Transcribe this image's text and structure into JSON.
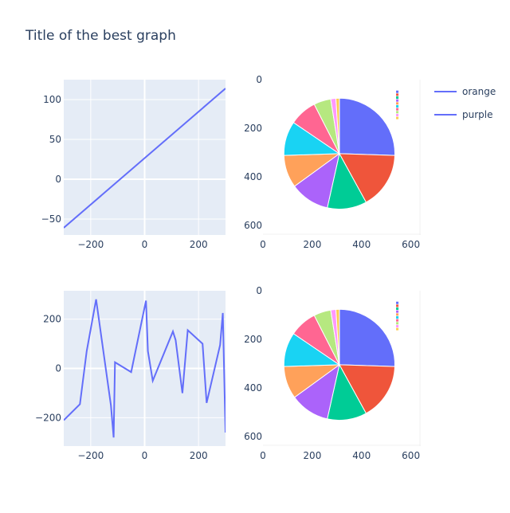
{
  "title": "Title of the best graph",
  "legend": {
    "position": "top-right",
    "items": [
      {
        "name": "orange",
        "color": "#636efa"
      },
      {
        "name": "purple",
        "color": "#636efa"
      }
    ]
  },
  "colors": {
    "plot_bg": "#e5ecf6",
    "grid": "#ffffff",
    "line": "#636efa",
    "text": "#2a3f5f",
    "pie_slices": [
      "#636efa",
      "#ef553b",
      "#00cc96",
      "#ab63fa",
      "#ffa15a",
      "#19d3f3",
      "#ff6692",
      "#b6e880",
      "#ff97ff",
      "#fecb52"
    ]
  },
  "chart_data": [
    {
      "type": "line",
      "subplot": "top-left",
      "series": [
        {
          "name": "orange",
          "x": [
            -300,
            300
          ],
          "y": [
            -61,
            114
          ]
        }
      ],
      "xlim": [
        -300,
        300
      ],
      "ylim": [
        -70,
        125
      ],
      "xticks": [
        -200,
        0,
        200
      ],
      "yticks": [
        -50,
        0,
        50,
        100
      ],
      "grid": true
    },
    {
      "type": "pie",
      "subplot": "top-right",
      "image_axes": true,
      "xticks": [
        0,
        200,
        400,
        600
      ],
      "yticks": [
        0,
        200,
        400,
        600
      ],
      "xlim": [
        0,
        640
      ],
      "ylim": [
        640,
        0
      ],
      "pie": {
        "center": [
          310,
          305
        ],
        "radius": 225
      },
      "slices": [
        {
          "label": "",
          "value": 25.5
        },
        {
          "label": "",
          "value": 16.5
        },
        {
          "label": "",
          "value": 11.5
        },
        {
          "label": "",
          "value": 11.5
        },
        {
          "label": "",
          "value": 9.5
        },
        {
          "label": "",
          "value": 10.0
        },
        {
          "label": "",
          "value": 8.0
        },
        {
          "label": "",
          "value": 5.0
        },
        {
          "label": "",
          "value": 1.5
        },
        {
          "label": "",
          "value": 1.0
        }
      ]
    },
    {
      "type": "line",
      "subplot": "bottom-left",
      "series": [
        {
          "name": "purple",
          "x": [
            -300,
            -240,
            -215,
            -180,
            -125,
            -115,
            -110,
            -50,
            5,
            12,
            30,
            105,
            115,
            140,
            160,
            215,
            230,
            280,
            290,
            300
          ],
          "y": [
            -210,
            -145,
            70,
            280,
            -150,
            -280,
            25,
            -15,
            275,
            70,
            -50,
            150,
            115,
            -100,
            155,
            100,
            -140,
            95,
            225,
            -260
          ]
        }
      ],
      "xlim": [
        -300,
        300
      ],
      "ylim": [
        -315,
        315
      ],
      "xticks": [
        -200,
        0,
        200
      ],
      "yticks": [
        -200,
        0,
        200
      ],
      "grid": true
    },
    {
      "type": "pie",
      "subplot": "bottom-right",
      "image_axes": true,
      "xticks": [
        0,
        200,
        400,
        600
      ],
      "yticks": [
        0,
        200,
        400,
        600
      ],
      "xlim": [
        0,
        640
      ],
      "ylim": [
        640,
        0
      ],
      "pie": {
        "center": [
          310,
          305
        ],
        "radius": 225
      },
      "slices": [
        {
          "label": "",
          "value": 25.5
        },
        {
          "label": "",
          "value": 16.5
        },
        {
          "label": "",
          "value": 11.5
        },
        {
          "label": "",
          "value": 11.5
        },
        {
          "label": "",
          "value": 9.5
        },
        {
          "label": "",
          "value": 10.0
        },
        {
          "label": "",
          "value": 8.0
        },
        {
          "label": "",
          "value": 5.0
        },
        {
          "label": "",
          "value": 1.5
        },
        {
          "label": "",
          "value": 1.0
        }
      ]
    }
  ]
}
